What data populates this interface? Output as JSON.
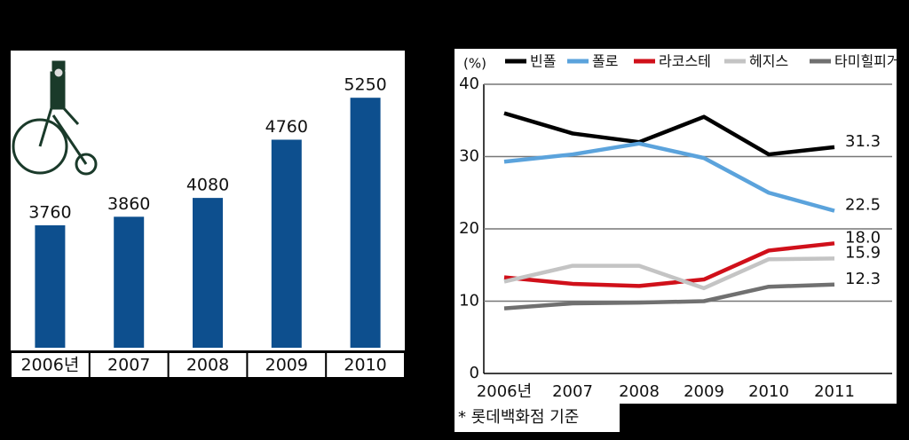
{
  "chart_data": [
    {
      "type": "bar",
      "categories": [
        "2006년",
        "2007",
        "2008",
        "2009",
        "2010"
      ],
      "values": [
        3760,
        3860,
        4080,
        4760,
        5250
      ],
      "color": "#0d4f8e",
      "ylim": [
        2330,
        5770
      ]
    },
    {
      "type": "line",
      "y_unit": "(%)",
      "categories": [
        "2006년",
        "2007",
        "2008",
        "2009",
        "2010",
        "2011"
      ],
      "series": [
        {
          "name": "빈폴",
          "color": "#000000",
          "values": [
            36,
            33.2,
            32,
            35.5,
            30.3,
            31.3
          ],
          "value_labels": [
            null,
            null,
            null,
            null,
            null,
            "31.3"
          ]
        },
        {
          "name": "폴로",
          "color": "#5ba3dc",
          "values": [
            29.3,
            30.3,
            31.8,
            29.8,
            25,
            22.5
          ],
          "value_labels": [
            null,
            null,
            null,
            null,
            null,
            "22.5"
          ]
        },
        {
          "name": "라코스테",
          "color": "#d0101a",
          "values": [
            13.3,
            12.4,
            12.1,
            13,
            17,
            18
          ],
          "value_labels": [
            null,
            null,
            null,
            null,
            null,
            "18.0"
          ]
        },
        {
          "name": "헤지스",
          "color": "#c4c4c4",
          "values": [
            12.7,
            14.9,
            14.9,
            11.8,
            15.8,
            15.9
          ],
          "value_labels": [
            null,
            null,
            null,
            null,
            null,
            "15.9"
          ]
        },
        {
          "name": "타미힐피거",
          "color": "#707070",
          "values": [
            9,
            9.7,
            9.8,
            10,
            12,
            12.3
          ],
          "value_labels": [
            null,
            null,
            null,
            null,
            null,
            "12.3"
          ]
        }
      ],
      "ylim": [
        0,
        40
      ],
      "yticks": [
        0,
        10,
        20,
        30,
        40
      ],
      "grid": true,
      "note": "* 롯데백화점 기준"
    }
  ]
}
